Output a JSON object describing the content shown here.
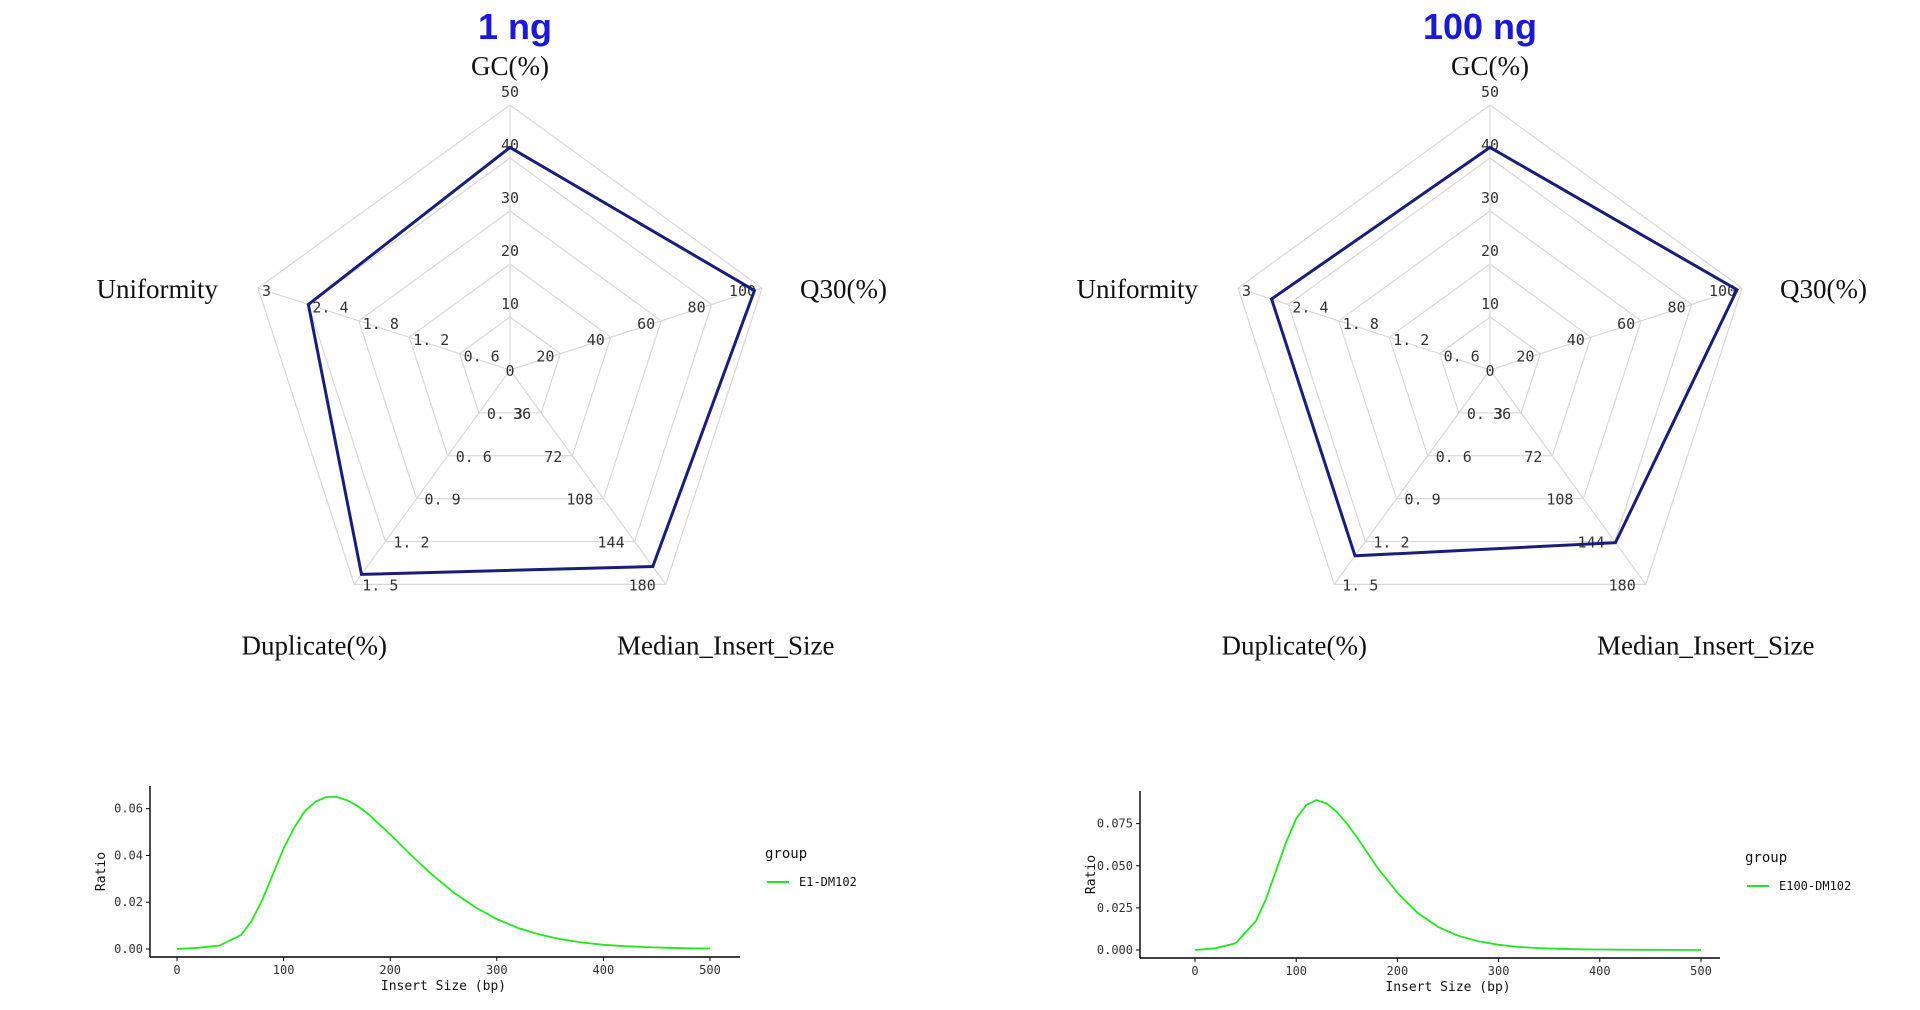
{
  "panels": [
    {
      "title": "1 ng",
      "radar": {
        "type": "radar",
        "axes": [
          {
            "name": "GC(%)",
            "ticks": [
              "0",
              "10",
              "20",
              "30",
              "40",
              "50"
            ],
            "max": 50,
            "value": 42
          },
          {
            "name": "Q30(%)",
            "ticks": [
              "20",
              "40",
              "60",
              "80",
              "100"
            ],
            "max": 100,
            "value": 97
          },
          {
            "name": "Median_Insert_Size",
            "ticks": [
              "36",
              "72",
              "108",
              "144",
              "180"
            ],
            "max": 180,
            "value": 165
          },
          {
            "name": "Duplicate(%)",
            "ticks": [
              "0. 3",
              "0. 6",
              "0. 9",
              "1. 2",
              "1. 5"
            ],
            "max": 1.5,
            "value": 1.43
          },
          {
            "name": "Uniformity",
            "ticks": [
              "0. 6",
              "1. 2",
              "1. 8",
              "2. 4",
              "3"
            ],
            "max": 3,
            "value": 2.4
          }
        ]
      },
      "chart_data": {
        "type": "line",
        "xlabel": "Insert Size (bp)",
        "ylabel": "Ratio",
        "xlim": [
          0,
          500
        ],
        "ylim": [
          0,
          0.068
        ],
        "x_ticks": [
          "0",
          "100",
          "200",
          "300",
          "400",
          "500"
        ],
        "y_ticks": [
          "0.00",
          "0.02",
          "0.04",
          "0.06"
        ],
        "y_tick_values": [
          0,
          0.02,
          0.04,
          0.06
        ],
        "legend_title": "group",
        "series": [
          {
            "name": "E1-DM102",
            "color": "#22e622",
            "x": [
              0,
              20,
              40,
              60,
              70,
              80,
              90,
              100,
              110,
              120,
              130,
              140,
              150,
              160,
              170,
              180,
              200,
              220,
              240,
              260,
              280,
              300,
              320,
              340,
              360,
              380,
              400,
              420,
              440,
              460,
              480,
              500
            ],
            "y": [
              0,
              0.0005,
              0.0015,
              0.006,
              0.012,
              0.021,
              0.032,
              0.043,
              0.052,
              0.059,
              0.063,
              0.065,
              0.065,
              0.0635,
              0.061,
              0.0575,
              0.049,
              0.04,
              0.0315,
              0.024,
              0.0178,
              0.0128,
              0.009,
              0.0062,
              0.0042,
              0.0028,
              0.0018,
              0.0012,
              0.0008,
              0.0005,
              0.0003,
              0.0002
            ]
          }
        ]
      }
    },
    {
      "title": "100 ng",
      "radar": {
        "type": "radar",
        "axes": [
          {
            "name": "GC(%)",
            "ticks": [
              "0",
              "10",
              "20",
              "30",
              "40",
              "50"
            ],
            "max": 50,
            "value": 42
          },
          {
            "name": "Q30(%)",
            "ticks": [
              "20",
              "40",
              "60",
              "80",
              "100"
            ],
            "max": 100,
            "value": 98
          },
          {
            "name": "Median_Insert_Size",
            "ticks": [
              "36",
              "72",
              "108",
              "144",
              "180"
            ],
            "max": 180,
            "value": 145
          },
          {
            "name": "Duplicate(%)",
            "ticks": [
              "0. 3",
              "0. 6",
              "0. 9",
              "1. 2",
              "1. 5"
            ],
            "max": 1.5,
            "value": 1.3
          },
          {
            "name": "Uniformity",
            "ticks": [
              "0. 6",
              "1. 2",
              "1. 8",
              "2. 4",
              "3"
            ],
            "max": 3,
            "value": 2.6
          }
        ]
      },
      "chart_data": {
        "type": "line",
        "xlabel": "Insert Size (bp)",
        "ylabel": "Ratio",
        "xlim": [
          0,
          500
        ],
        "ylim": [
          0,
          0.092
        ],
        "x_ticks": [
          "0",
          "100",
          "200",
          "300",
          "400",
          "500"
        ],
        "y_ticks": [
          "0.000",
          "0.025",
          "0.050",
          "0.075"
        ],
        "y_tick_values": [
          0,
          0.025,
          0.05,
          0.075
        ],
        "legend_title": "group",
        "series": [
          {
            "name": "E100-DM102",
            "color": "#22e622",
            "x": [
              0,
              20,
              40,
              60,
              70,
              80,
              90,
              100,
              110,
              120,
              130,
              140,
              150,
              160,
              170,
              180,
              200,
              220,
              240,
              260,
              280,
              300,
              320,
              340,
              360,
              380,
              400,
              420,
              440,
              460,
              480,
              500
            ],
            "y": [
              0,
              0.001,
              0.004,
              0.017,
              0.03,
              0.047,
              0.064,
              0.078,
              0.086,
              0.089,
              0.087,
              0.082,
              0.075,
              0.067,
              0.058,
              0.049,
              0.034,
              0.022,
              0.0138,
              0.0085,
              0.0052,
              0.0031,
              0.0018,
              0.0011,
              0.0007,
              0.0004,
              0.0003,
              0.0002,
              0.0001,
              0.0001,
              0.0,
              0.0
            ]
          }
        ]
      }
    }
  ]
}
